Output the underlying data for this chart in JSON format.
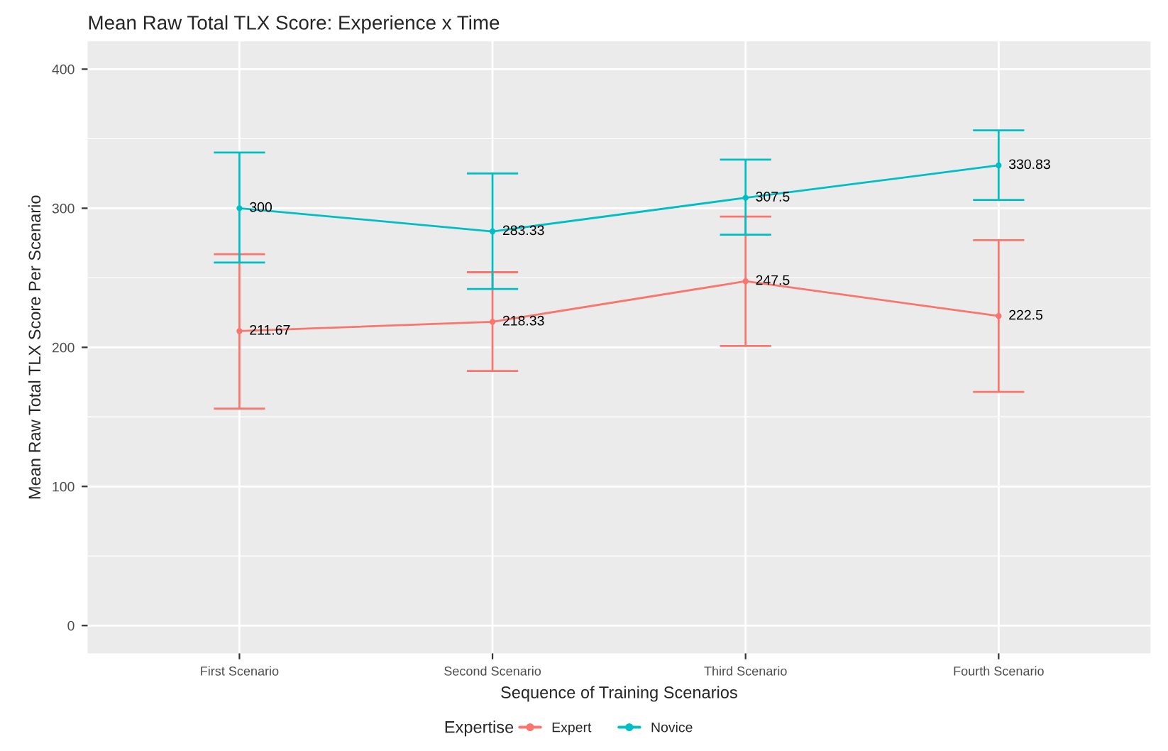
{
  "chart_data": {
    "type": "line",
    "title": "Mean Raw Total TLX Score: Experience x Time",
    "xlabel": "Sequence of Training Scenarios",
    "ylabel": "Mean Raw Total TLX Score Per Scenario",
    "legend_title": "Expertise",
    "categories": [
      "First Scenario",
      "Second Scenario",
      "Third Scenario",
      "Fourth Scenario"
    ],
    "series": [
      {
        "name": "Expert",
        "color": "#f8766d",
        "values": [
          211.67,
          218.33,
          247.5,
          222.5
        ],
        "errors": [
          [
            156,
            267
          ],
          [
            183,
            254
          ],
          [
            201,
            294
          ],
          [
            168,
            277
          ]
        ]
      },
      {
        "name": "Novice",
        "color": "#00bfc4",
        "values": [
          300,
          283.33,
          307.5,
          330.83
        ],
        "errors": [
          [
            261,
            340
          ],
          [
            242,
            325
          ],
          [
            281,
            335
          ],
          [
            306,
            356
          ]
        ]
      }
    ],
    "ylim": [
      -20,
      420
    ],
    "yticks": [
      0,
      100,
      200,
      300,
      400
    ],
    "grid": true,
    "legend": "bottom",
    "marker": "circle",
    "line_style": "solid",
    "data_labels": true
  }
}
